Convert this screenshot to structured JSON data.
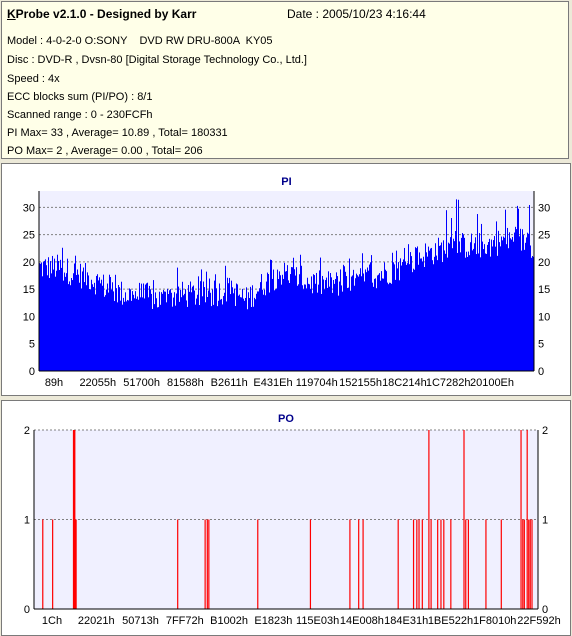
{
  "info": {
    "title_prefix": "K",
    "title_rest": "Probe v2.1.0 - Designed by Karr",
    "date": "Date : 2005/10/23 4:16:44",
    "model": "Model : 4-0-2-0 O:SONY    DVD RW DRU-800A  KY05",
    "disc": "Disc : DVD-R , Dvsn-80 [Digital Storage Technology Co., Ltd.]",
    "speed": "Speed : 4x",
    "ecc": "ECC blocks sum (PI/PO) : 8/1",
    "range": "Scanned range : 0 - 230FCFh",
    "pi_stats": "PI Max= 33 , Average= 10.89 , Total= 180331",
    "po_stats": "PO Max= 2 , Average= 0.00 , Total= 206"
  },
  "colors": {
    "pi": "#0000ff",
    "po": "#ff0000",
    "plot_bg": "#f0f0ff",
    "grid": "#808080"
  },
  "chart_data": [
    {
      "type": "bar",
      "title": "PI",
      "ylim": [
        0,
        33
      ],
      "y_ticks": [
        0,
        5,
        10,
        15,
        20,
        25,
        30
      ],
      "x_tick_labels": [
        "89h",
        "22055h",
        "51700h",
        "81588h",
        "B2611h",
        "E431Eh",
        "119704h",
        "152155h",
        "18C214h",
        "1C7282h",
        "20100Eh"
      ],
      "x_range": [
        0,
        2297295
      ],
      "series": [
        {
          "color": "#0000ff",
          "profile_x": [
            0,
            80000,
            160000,
            240000,
            320000,
            400000,
            480000,
            560000,
            640000,
            720000,
            800000,
            880000,
            960000,
            1040000,
            1120000,
            1200000,
            1280000,
            1360000,
            1440000,
            1520000,
            1600000,
            1680000,
            1760000,
            1840000,
            1920000,
            2000000,
            2080000,
            2160000,
            2240000,
            2297295
          ],
          "mean": [
            19,
            19,
            18,
            17,
            15,
            14,
            14,
            13,
            14,
            14,
            14,
            15,
            13,
            16,
            18,
            17,
            16,
            16,
            16,
            17,
            18,
            19,
            21,
            22,
            23,
            23,
            23,
            24,
            24,
            23
          ],
          "peak": [
            25,
            26,
            24,
            21,
            20,
            19,
            19,
            18,
            19,
            19,
            19,
            20,
            19,
            28,
            24,
            22,
            21,
            21,
            21,
            22,
            23,
            25,
            27,
            29,
            33,
            31,
            30,
            30,
            31,
            31
          ]
        }
      ]
    },
    {
      "type": "bar",
      "title": "PO",
      "ylim": [
        0,
        2
      ],
      "y_ticks": [
        0,
        1,
        2
      ],
      "x_tick_labels": [
        "1Ch",
        "22021h",
        "50713h",
        "7FF72h",
        "B1002h",
        "E1823h",
        "115E03h",
        "14E008h",
        "184E31h",
        "1BE522h",
        "1F8010h",
        "22F592h"
      ],
      "x_range": [
        0,
        2297295
      ],
      "series": [
        {
          "color": "#ff0000",
          "spikes": [
            [
              40000,
              1
            ],
            [
              85000,
              1
            ],
            [
              180000,
              2
            ],
            [
              183000,
              2
            ],
            [
              186000,
              2
            ],
            [
              189000,
              1
            ],
            [
              192000,
              1
            ],
            [
              655000,
              1
            ],
            [
              780000,
              1
            ],
            [
              790000,
              1
            ],
            [
              797000,
              1
            ],
            [
              1020000,
              1
            ],
            [
              1260000,
              1
            ],
            [
              1440000,
              1
            ],
            [
              1480000,
              1
            ],
            [
              1500000,
              1
            ],
            [
              1660000,
              1
            ],
            [
              1730000,
              1
            ],
            [
              1745000,
              1
            ],
            [
              1755000,
              1
            ],
            [
              1770000,
              1
            ],
            [
              1800000,
              2
            ],
            [
              1810000,
              1
            ],
            [
              1840000,
              1
            ],
            [
              1855000,
              1
            ],
            [
              1868000,
              1
            ],
            [
              1900000,
              1
            ],
            [
              1960000,
              2
            ],
            [
              1968000,
              1
            ],
            [
              1980000,
              1
            ],
            [
              2060000,
              1
            ],
            [
              2130000,
              1
            ],
            [
              2220000,
              2
            ],
            [
              2228000,
              1
            ],
            [
              2235000,
              1
            ],
            [
              2248000,
              2
            ],
            [
              2255000,
              1
            ],
            [
              2262000,
              1
            ],
            [
              2270000,
              1
            ]
          ]
        }
      ]
    }
  ]
}
